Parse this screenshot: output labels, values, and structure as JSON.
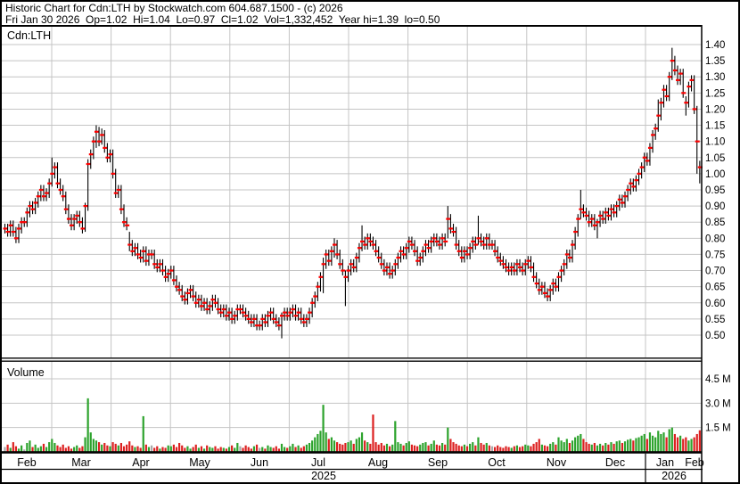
{
  "header": {
    "title_line": "Historic Chart for Cdn:LTH by Stockwatch.com 604.687.1500 - (c) 2026",
    "info_line": "Fri Jan 30 2026  Op=1.02  Hi=1.04  Lo=0.97  Cl=1.02  Vol=1,332,452  Year hi=1.39  lo=0.50",
    "quote": {
      "date": "Fri Jan 30 2026",
      "op": "1.02",
      "hi": "1.04",
      "lo": "0.97",
      "cl": "1.02",
      "vol": "1,332,452",
      "year_hi": "1.39",
      "year_lo": "0.50"
    }
  },
  "chart_data": {
    "type": "ohlc",
    "symbol": "Cdn:LTH",
    "volume_label": "Volume",
    "price_axis": {
      "ticks": [
        1.4,
        1.35,
        1.3,
        1.25,
        1.2,
        1.15,
        1.1,
        1.05,
        1.0,
        0.95,
        0.9,
        0.85,
        0.8,
        0.75,
        0.7,
        0.65,
        0.6,
        0.55,
        0.5
      ],
      "ylim": [
        0.43,
        1.46
      ],
      "grid": true
    },
    "volume_axis": {
      "tick_labels": [
        "4.5 M",
        "3.0 M",
        "1.5 M"
      ],
      "tick_values": [
        4.5,
        3.0,
        1.5
      ],
      "units": "millions",
      "grid": true
    },
    "x_axis": {
      "months": [
        "Feb",
        "Mar",
        "Apr",
        "May",
        "Jun",
        "Jul",
        "Aug",
        "Sep",
        "Oct",
        "Nov",
        "Dec",
        "Jan",
        "Feb"
      ],
      "years": [
        "2025",
        "2026"
      ],
      "legend_position": "right"
    },
    "default_spread": 0.015,
    "closes": [
      0.83,
      0.82,
      0.84,
      0.82,
      0.8,
      0.83,
      0.85,
      0.85,
      0.88,
      0.9,
      0.89,
      0.91,
      0.93,
      0.95,
      0.93,
      0.94,
      0.97,
      1.0,
      1.02,
      0.97,
      0.95,
      0.93,
      0.89,
      0.86,
      0.84,
      0.86,
      0.87,
      0.85,
      0.83,
      0.9,
      1.03,
      1.06,
      1.1,
      1.13,
      1.1,
      1.12,
      1.08,
      1.05,
      1.06,
      1.0,
      0.94,
      0.95,
      0.89,
      0.85,
      0.84,
      0.78,
      0.76,
      0.77,
      0.75,
      0.74,
      0.76,
      0.73,
      0.75,
      0.75,
      0.72,
      0.71,
      0.72,
      0.7,
      0.68,
      0.69,
      0.7,
      0.67,
      0.65,
      0.64,
      0.62,
      0.61,
      0.63,
      0.64,
      0.62,
      0.6,
      0.61,
      0.59,
      0.6,
      0.58,
      0.59,
      0.61,
      0.6,
      0.58,
      0.57,
      0.58,
      0.56,
      0.57,
      0.55,
      0.56,
      0.58,
      0.58,
      0.57,
      0.56,
      0.55,
      0.54,
      0.55,
      0.53,
      0.53,
      0.55,
      0.54,
      0.56,
      0.57,
      0.55,
      0.54,
      0.53,
      0.56,
      0.57,
      0.56,
      0.57,
      0.58,
      0.56,
      0.57,
      0.55,
      0.54,
      0.55,
      0.57,
      0.6,
      0.62,
      0.65,
      0.68,
      0.72,
      0.75,
      0.73,
      0.76,
      0.78,
      0.75,
      0.72,
      0.7,
      0.68,
      0.7,
      0.72,
      0.71,
      0.74,
      0.77,
      0.79,
      0.78,
      0.8,
      0.79,
      0.78,
      0.76,
      0.74,
      0.72,
      0.7,
      0.71,
      0.69,
      0.7,
      0.72,
      0.74,
      0.76,
      0.75,
      0.77,
      0.79,
      0.78,
      0.76,
      0.73,
      0.74,
      0.76,
      0.78,
      0.77,
      0.79,
      0.8,
      0.79,
      0.78,
      0.8,
      0.79,
      0.86,
      0.83,
      0.82,
      0.78,
      0.76,
      0.74,
      0.76,
      0.75,
      0.77,
      0.79,
      0.78,
      0.8,
      0.79,
      0.78,
      0.8,
      0.78,
      0.78,
      0.76,
      0.74,
      0.73,
      0.72,
      0.71,
      0.7,
      0.71,
      0.7,
      0.72,
      0.71,
      0.7,
      0.72,
      0.73,
      0.71,
      0.68,
      0.66,
      0.64,
      0.65,
      0.63,
      0.62,
      0.64,
      0.66,
      0.65,
      0.68,
      0.7,
      0.72,
      0.75,
      0.74,
      0.78,
      0.82,
      0.86,
      0.89,
      0.88,
      0.87,
      0.85,
      0.86,
      0.84,
      0.85,
      0.87,
      0.86,
      0.88,
      0.87,
      0.89,
      0.88,
      0.9,
      0.92,
      0.91,
      0.93,
      0.95,
      0.97,
      0.96,
      0.98,
      1.0,
      1.02,
      1.05,
      1.04,
      1.08,
      1.12,
      1.14,
      1.18,
      1.22,
      1.26,
      1.24,
      1.3,
      1.35,
      1.32,
      1.29,
      1.31,
      1.25,
      1.22,
      1.27,
      1.29,
      1.2,
      1.1,
      1.02
    ],
    "hl_overrides": {
      "17": [
        1.05,
        0.96
      ],
      "29": [
        0.91,
        0.82
      ],
      "33": [
        1.15,
        1.08
      ],
      "35": [
        1.14,
        1.09
      ],
      "45": [
        0.82,
        0.76
      ],
      "100": [
        0.57,
        0.49
      ],
      "115": [
        0.74,
        0.63
      ],
      "119": [
        0.8,
        0.74
      ],
      "123": [
        0.7,
        0.59
      ],
      "129": [
        0.84,
        0.76
      ],
      "160": [
        0.9,
        0.8
      ],
      "171": [
        0.87,
        0.78
      ],
      "208": [
        0.95,
        0.86
      ],
      "214": [
        0.86,
        0.8
      ],
      "236": [
        1.23,
        1.13
      ],
      "241": [
        1.39,
        1.29
      ],
      "246": [
        1.24,
        1.18
      ],
      "250": [
        1.21,
        1.0
      ],
      "251": [
        1.04,
        0.97
      ]
    },
    "volumes": [
      0.3,
      0.45,
      0.25,
      0.6,
      0.35,
      0.2,
      0.4,
      0.15,
      0.55,
      0.7,
      0.3,
      0.45,
      0.25,
      0.35,
      0.5,
      0.3,
      0.6,
      0.8,
      0.55,
      0.4,
      0.3,
      0.45,
      0.25,
      0.35,
      0.2,
      0.3,
      0.4,
      0.25,
      0.35,
      0.9,
      3.3,
      1.2,
      0.8,
      0.7,
      0.6,
      0.45,
      0.55,
      0.4,
      0.35,
      0.6,
      0.5,
      0.4,
      0.55,
      0.35,
      0.45,
      0.65,
      0.4,
      0.3,
      0.35,
      0.25,
      2.2,
      0.45,
      0.3,
      0.4,
      0.25,
      0.35,
      0.2,
      0.3,
      0.25,
      0.4,
      0.35,
      0.45,
      0.3,
      0.55,
      0.4,
      0.25,
      0.35,
      0.2,
      0.3,
      0.45,
      0.25,
      0.35,
      0.2,
      0.4,
      0.3,
      0.25,
      0.35,
      0.2,
      0.3,
      0.25,
      0.2,
      0.3,
      0.4,
      0.25,
      0.55,
      0.35,
      0.25,
      0.4,
      0.3,
      0.2,
      0.35,
      0.45,
      0.25,
      0.3,
      0.2,
      0.4,
      0.3,
      0.25,
      0.35,
      0.2,
      0.5,
      0.3,
      0.25,
      0.35,
      0.5,
      0.3,
      0.4,
      0.25,
      0.35,
      0.45,
      0.55,
      0.7,
      0.9,
      1.1,
      1.3,
      2.9,
      1.2,
      0.8,
      0.9,
      0.7,
      0.6,
      0.5,
      0.45,
      0.55,
      0.6,
      0.7,
      0.5,
      0.8,
      0.9,
      1.2,
      0.7,
      0.6,
      0.5,
      2.3,
      0.6,
      0.45,
      0.55,
      0.4,
      0.5,
      0.35,
      0.45,
      1.9,
      0.6,
      0.5,
      0.4,
      0.55,
      0.65,
      0.45,
      0.4,
      0.35,
      0.45,
      0.55,
      0.6,
      0.4,
      0.5,
      0.7,
      0.45,
      0.4,
      0.55,
      0.45,
      1.5,
      0.8,
      0.6,
      0.5,
      0.4,
      0.35,
      0.45,
      0.35,
      0.5,
      0.6,
      0.4,
      0.9,
      0.55,
      0.45,
      0.55,
      0.4,
      0.35,
      0.3,
      0.4,
      0.3,
      0.25,
      0.35,
      0.3,
      0.25,
      0.35,
      0.4,
      0.3,
      0.35,
      0.45,
      0.4,
      0.35,
      0.5,
      0.6,
      0.8,
      0.45,
      0.4,
      0.35,
      0.5,
      0.6,
      0.45,
      0.9,
      0.7,
      0.6,
      0.8,
      0.55,
      0.7,
      0.9,
      1.0,
      1.1,
      0.8,
      0.6,
      0.5,
      0.45,
      0.55,
      0.4,
      0.5,
      0.4,
      0.55,
      0.45,
      0.6,
      0.5,
      0.65,
      0.7,
      0.55,
      0.65,
      0.75,
      0.8,
      0.7,
      0.85,
      0.9,
      1.0,
      1.1,
      0.8,
      1.2,
      1.0,
      0.9,
      1.3,
      1.1,
      1.2,
      0.9,
      1.4,
      1.5,
      1.1,
      0.9,
      1.0,
      0.8,
      0.9,
      0.7,
      0.8,
      0.9,
      1.1,
      1.33
    ],
    "colors": {
      "bar": "#000000",
      "close_tick": "#ff0000",
      "volume_up": "#2da32d",
      "volume_down": "#dc2020",
      "volume_unchanged": "#a9a9a9",
      "grid": "#c4c4c4"
    }
  }
}
